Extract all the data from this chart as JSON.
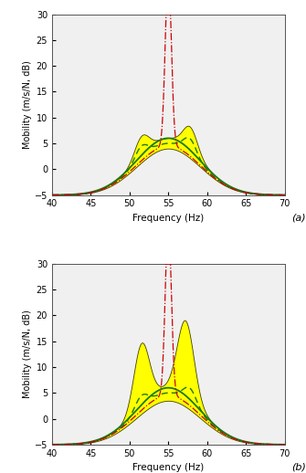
{
  "freq_min": 40,
  "freq_max": 70,
  "ylim": [
    -5,
    30
  ],
  "yticks": [
    -5,
    0,
    5,
    10,
    15,
    20,
    25,
    30
  ],
  "xticks": [
    40,
    45,
    50,
    55,
    60,
    65,
    70
  ],
  "xlabel": "Frequency (Hz)",
  "ylabel": "Mobility (m/s/N, dB)",
  "subplot_labels": [
    "(a)",
    "(b)"
  ],
  "shunt_color": "#cc0000",
  "solid_color": "#1a7a1a",
  "dashed_color": "#1a7a1a",
  "fill_color": "#ffff00",
  "fill_edge_color": "#404000"
}
